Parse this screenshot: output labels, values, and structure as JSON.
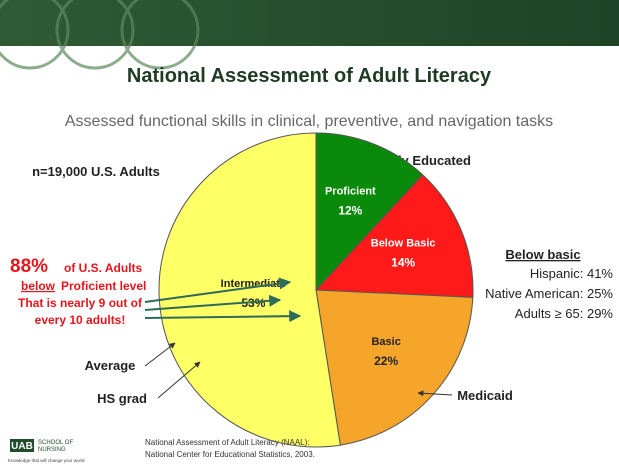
{
  "chart_data": {
    "type": "pie",
    "categories": [
      "Proficient",
      "Below Basic",
      "Basic",
      "Intermediate"
    ],
    "values": [
      12,
      14,
      22,
      53
    ],
    "value_labels": [
      "12%",
      "14%",
      "22%",
      "53%"
    ],
    "colors": [
      "#0a8a0a",
      "#ff1a1a",
      "#f4a52a",
      "#ffff66"
    ]
  },
  "slide": {
    "title": "National Assessment of Adult Literacy",
    "subtitle": "Assessed functional skills in clinical, preventive, and navigation tasks",
    "sample": "n=19,000 U.S. Adults",
    "highly_educated": "Highly Educated",
    "below_basic": {
      "heading": "Below basic",
      "lines": [
        "Hispanic: 41%",
        "Native American: 25%",
        "Adults ≥ 65: 29%"
      ]
    },
    "callout": {
      "big": "88%",
      "rest": "of U.S. Adults",
      "underlined": "below",
      "line2": "Proficient level",
      "line3": "That is nearly 9 out of",
      "line4": "every 10 adults!"
    },
    "average": "Average",
    "hs_grad": "HS grad",
    "medicaid": "Medicaid",
    "footer": [
      "National Assessment of Adult Literacy (NAAL):",
      "National Center for Educational Statistics, 2003."
    ],
    "logo": {
      "mark": "UAB",
      "school": "SCHOOL OF",
      "nursing": "NURSING",
      "tagline": "Knowledge that will change your world"
    }
  }
}
